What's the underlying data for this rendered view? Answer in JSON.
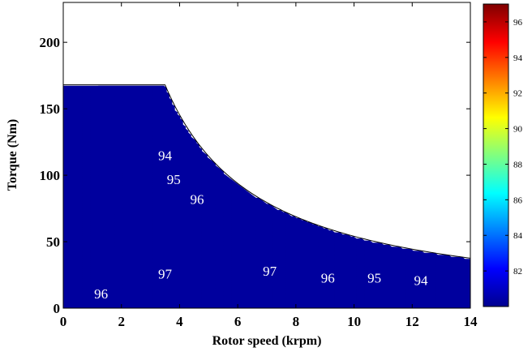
{
  "chart_data": {
    "type": "contour",
    "xlabel": "Rotor speed (krpm)",
    "ylabel": "Torque (Nm)",
    "xlim": [
      0,
      14
    ],
    "ylim": [
      0,
      230
    ],
    "xticks": [
      "0",
      "2",
      "4",
      "6",
      "8",
      "10",
      "12",
      "14"
    ],
    "yticks": [
      "0",
      "50",
      "100",
      "150",
      "200"
    ],
    "colorbar": {
      "range": [
        80,
        97
      ],
      "ticks": [
        "82",
        "84",
        "86",
        "88",
        "90",
        "92",
        "94",
        "96"
      ]
    },
    "torque_limit": {
      "max_torque": 168,
      "corner_speed": 3.5
    },
    "levels": [
      81,
      82,
      83,
      84,
      85,
      86,
      87,
      88,
      89,
      90,
      91,
      92,
      93,
      94,
      95,
      96,
      97
    ],
    "contour_labels": [
      {
        "text": "94",
        "x": 3.5,
        "y": 115
      },
      {
        "text": "95",
        "x": 3.8,
        "y": 97
      },
      {
        "text": "96",
        "x": 4.6,
        "y": 82
      },
      {
        "text": "97",
        "x": 3.5,
        "y": 26
      },
      {
        "text": "97",
        "x": 7.1,
        "y": 28
      },
      {
        "text": "96",
        "x": 9.1,
        "y": 23
      },
      {
        "text": "95",
        "x": 10.7,
        "y": 23
      },
      {
        "text": "94",
        "x": 12.3,
        "y": 21
      },
      {
        "text": "96",
        "x": 1.3,
        "y": 11
      }
    ]
  }
}
